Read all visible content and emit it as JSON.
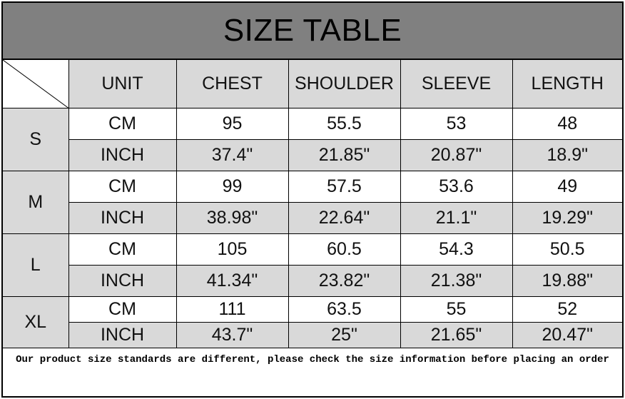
{
  "title": "SIZE TABLE",
  "headers": [
    "UNIT",
    "CHEST",
    "SHOULDER",
    "SLEEVE",
    "LENGTH"
  ],
  "rows": [
    {
      "size": "S",
      "cm": {
        "unit": "CM",
        "values": [
          "95",
          "55.5",
          "53",
          "48"
        ]
      },
      "inch": {
        "unit": "INCH",
        "values": [
          "37.4\"",
          "21.85\"",
          "20.87\"",
          "18.9\""
        ]
      }
    },
    {
      "size": "M",
      "cm": {
        "unit": "CM",
        "values": [
          "99",
          "57.5",
          "53.6",
          "49"
        ]
      },
      "inch": {
        "unit": "INCH",
        "values": [
          "38.98\"",
          "22.64\"",
          "21.1\"",
          "19.29\""
        ]
      }
    },
    {
      "size": "L",
      "cm": {
        "unit": "CM",
        "values": [
          "105",
          "60.5",
          "54.3",
          "50.5"
        ]
      },
      "inch": {
        "unit": "INCH",
        "values": [
          "41.34\"",
          "23.82\"",
          "21.38\"",
          "19.88\""
        ]
      }
    },
    {
      "size": "XL",
      "cm": {
        "unit": "CM",
        "values": [
          "111",
          "63.5",
          "55",
          "52"
        ]
      },
      "inch": {
        "unit": "INCH",
        "values": [
          "43.7\"",
          "25\"",
          "21.65\"",
          "20.47\""
        ]
      }
    }
  ],
  "note": "Our product size standards are different, please check the size information before placing an order",
  "colors": {
    "title_bg": "#808080",
    "cell_gray": "#d9d9d9"
  }
}
